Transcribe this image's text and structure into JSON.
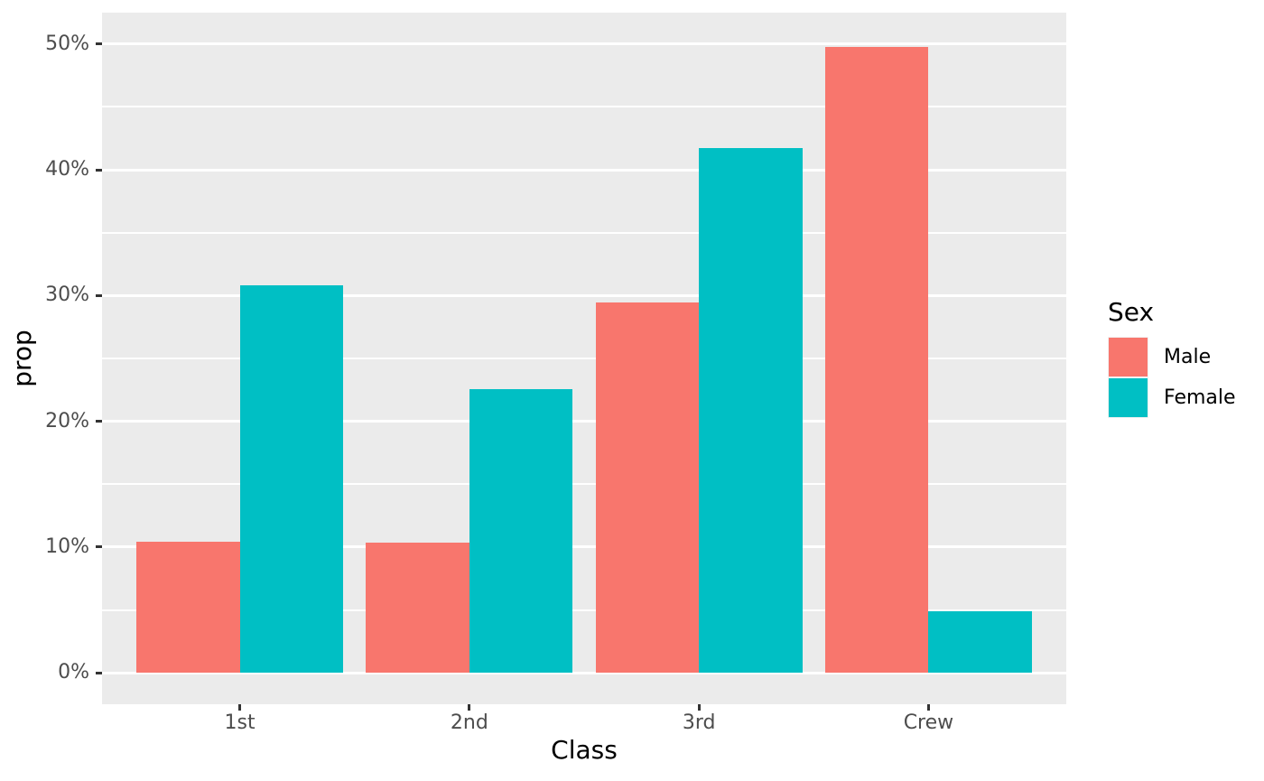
{
  "figure": {
    "background_color": "#FFFFFF",
    "panel_background_color": "#EBEBEB",
    "gridline_color": "#FFFFFF",
    "tick_label_color": "#4D4D4D",
    "axis_title_color": "#000000",
    "tick_mark_color": "#333333"
  },
  "chart_data": {
    "type": "bar",
    "mode": "grouped-dodge",
    "title": "",
    "xlabel": "Class",
    "ylabel": "prop",
    "categories": [
      "1st",
      "2nd",
      "3rd",
      "Crew"
    ],
    "series": [
      {
        "name": "Male",
        "color": "#F8766D",
        "values": [
          10.4,
          10.34,
          29.46,
          49.8
        ]
      },
      {
        "name": "Female",
        "color": "#00BFC4",
        "values": [
          30.85,
          22.55,
          41.7,
          4.89
        ]
      }
    ],
    "ylim": [
      0,
      50
    ],
    "yticks": [
      0,
      10,
      20,
      30,
      40,
      50
    ],
    "ytick_labels": [
      "0%",
      "10%",
      "20%",
      "30%",
      "40%",
      "50%"
    ],
    "yticks_minor": [
      5,
      15,
      25,
      35,
      45
    ],
    "grid": "major-and-minor-white-on-gray",
    "legend": {
      "title": "Sex",
      "position": "right",
      "entries": [
        "Male",
        "Female"
      ]
    }
  }
}
